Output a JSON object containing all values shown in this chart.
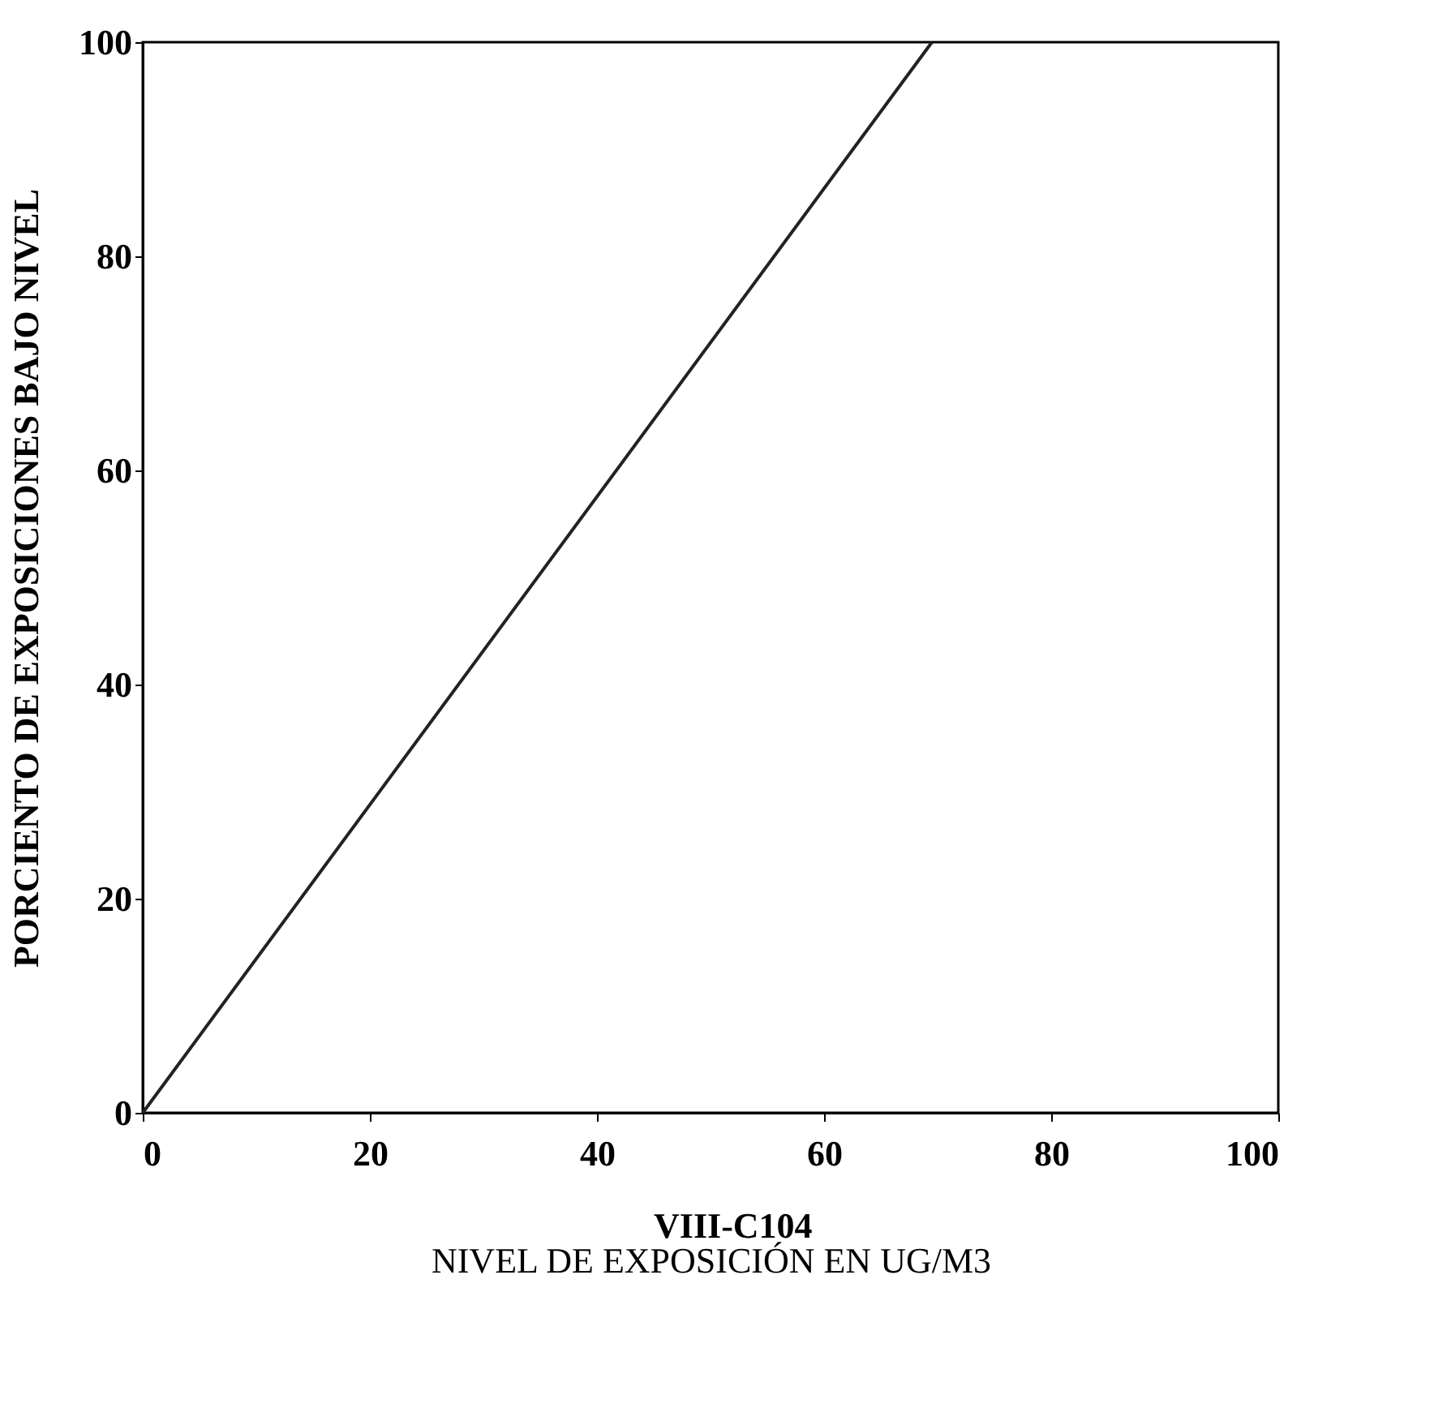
{
  "chart_data": {
    "type": "line",
    "xlabel": "NIVEL DE EXPOSICIÓN EN UG/M3",
    "ylabel": "PORCIENTO DE EXPOSICIONES BAJO NIVEL",
    "x": [
      0,
      69.5
    ],
    "series": [
      {
        "color": "#222222",
        "values": [
          0,
          100
        ]
      }
    ],
    "xlim": [
      0,
      100
    ],
    "ylim": [
      0,
      100
    ],
    "xticks": [
      0,
      20,
      40,
      60,
      80,
      100
    ],
    "yticks": [
      0,
      20,
      40,
      60,
      80,
      100
    ],
    "grid": false,
    "marker": "none",
    "line_style": "solid",
    "annotations": [
      "VIII-C104"
    ]
  }
}
